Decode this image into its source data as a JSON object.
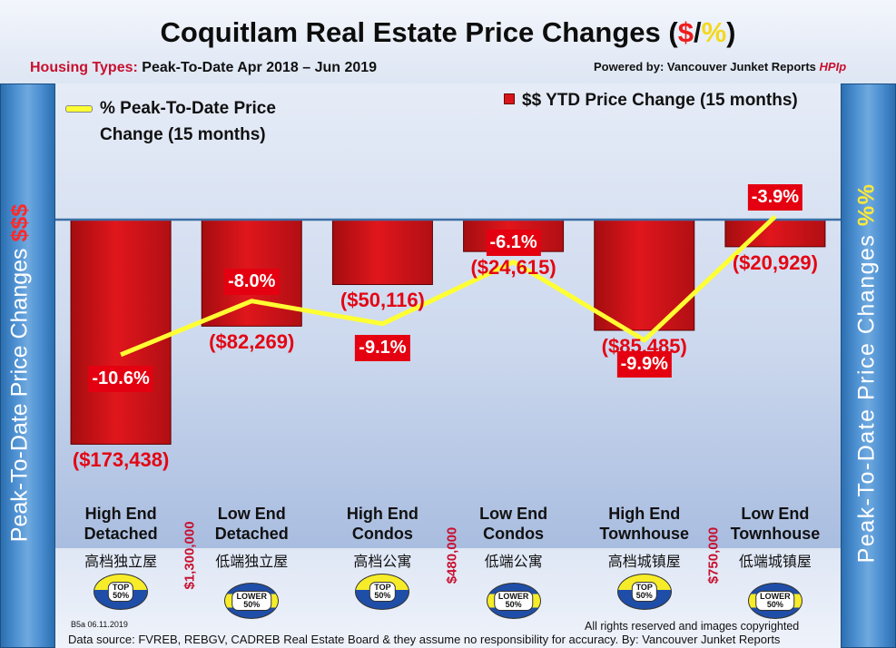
{
  "header": {
    "title_main": "Coquitlam Real Estate Price Changes (",
    "title_dollar": "$",
    "title_slash": "/",
    "title_pct": "%",
    "title_close": ")",
    "subtitle_label": "Housing Types:",
    "subtitle_value": "Peak-To-Date Apr 2018 – Jun 2019",
    "powered_label": "Powered by: Vancouver Junket Reports",
    "powered_brand": "HPIp"
  },
  "axis_labels": {
    "left_text": "Peak-To-Date Price Changes ",
    "left_accent": "$$$",
    "right_text": "Peak-To-Date  Price  Changes ",
    "right_accent": "%%"
  },
  "legend": {
    "line_label_1": "% Peak-To-Date Price",
    "line_label_2": "Change (15 months)",
    "bar_label": "$$ YTD Price Change (15 months)"
  },
  "chart_data": {
    "type": "bar",
    "title": "Coquitlam Real Estate Price Changes ($/%)",
    "categories": [
      "High End Detached",
      "Low End Detached",
      "High End Condos",
      "Low End Condos",
      "High End Townhouse",
      "Low End Townhouse"
    ],
    "series": [
      {
        "name": "$$ YTD Price Change (15 months)",
        "type": "bar",
        "axis": "left",
        "values": [
          -173438,
          -82269,
          -50116,
          -24615,
          -85485,
          -20929
        ],
        "labels": [
          "($173,438)",
          "($82,269)",
          "($50,116)",
          "($24,615)",
          "($85,485)",
          "($20,929)"
        ],
        "ylim": [
          -300000,
          0
        ]
      },
      {
        "name": "% Peak-To-Date Price Change (15 months)",
        "type": "line",
        "axis": "right",
        "values": [
          -10.6,
          -8.0,
          -9.1,
          -6.1,
          -9.9,
          -3.9
        ],
        "labels": [
          "-10.6%",
          "-8.0%",
          "-9.1%",
          "-6.1%",
          "-9.9%",
          "-3.9%"
        ],
        "ylim": [
          -14,
          0
        ]
      }
    ],
    "xlabel": "",
    "ylabel": "Peak-To-Date Price Changes $$$",
    "ylabel_right": "Peak-To-Date Price Changes %%"
  },
  "categories_display": [
    {
      "line1": "High End",
      "line2": "Detached",
      "chinese": "高档独立屋",
      "badge_line1": "TOP",
      "badge_line2": "50%",
      "badge_type": "top"
    },
    {
      "line1": "Low End",
      "line2": "Detached",
      "chinese": "低端独立屋",
      "badge_line1": "LOWER",
      "badge_line2": "50%",
      "badge_type": "lower"
    },
    {
      "line1": "High End",
      "line2": "Condos",
      "chinese": "高档公寓",
      "badge_line1": "TOP",
      "badge_line2": "50%",
      "badge_type": "top"
    },
    {
      "line1": "Low End",
      "line2": "Condos",
      "chinese": "低端公寓",
      "badge_line1": "LOWER",
      "badge_line2": "50%",
      "badge_type": "lower"
    },
    {
      "line1": "High End",
      "line2": "Townhouse",
      "chinese": "高档城镇屋",
      "badge_line1": "TOP",
      "badge_line2": "50%",
      "badge_type": "top"
    },
    {
      "line1": "Low End",
      "line2": "Townhouse",
      "chinese": "低端城镇屋",
      "badge_line1": "LOWER",
      "badge_line2": "50%",
      "badge_type": "lower"
    }
  ],
  "price_thresholds": [
    "$1,300,000",
    "$480,000",
    "$750,000"
  ],
  "footer": {
    "code": "B5a 06.11.2019",
    "rights": "All rights reserved and  images copyrighted",
    "source": "Data source: FVREB, REBGV, CADREB Real Estate Board & they assume no responsibility for accuracy. By: Vancouver Junket Reports"
  },
  "colors": {
    "bar_red": "#d9141b",
    "line_yellow": "#ffff33",
    "label_red": "#e30613",
    "sidebar_blue": "#4a8ed0"
  }
}
